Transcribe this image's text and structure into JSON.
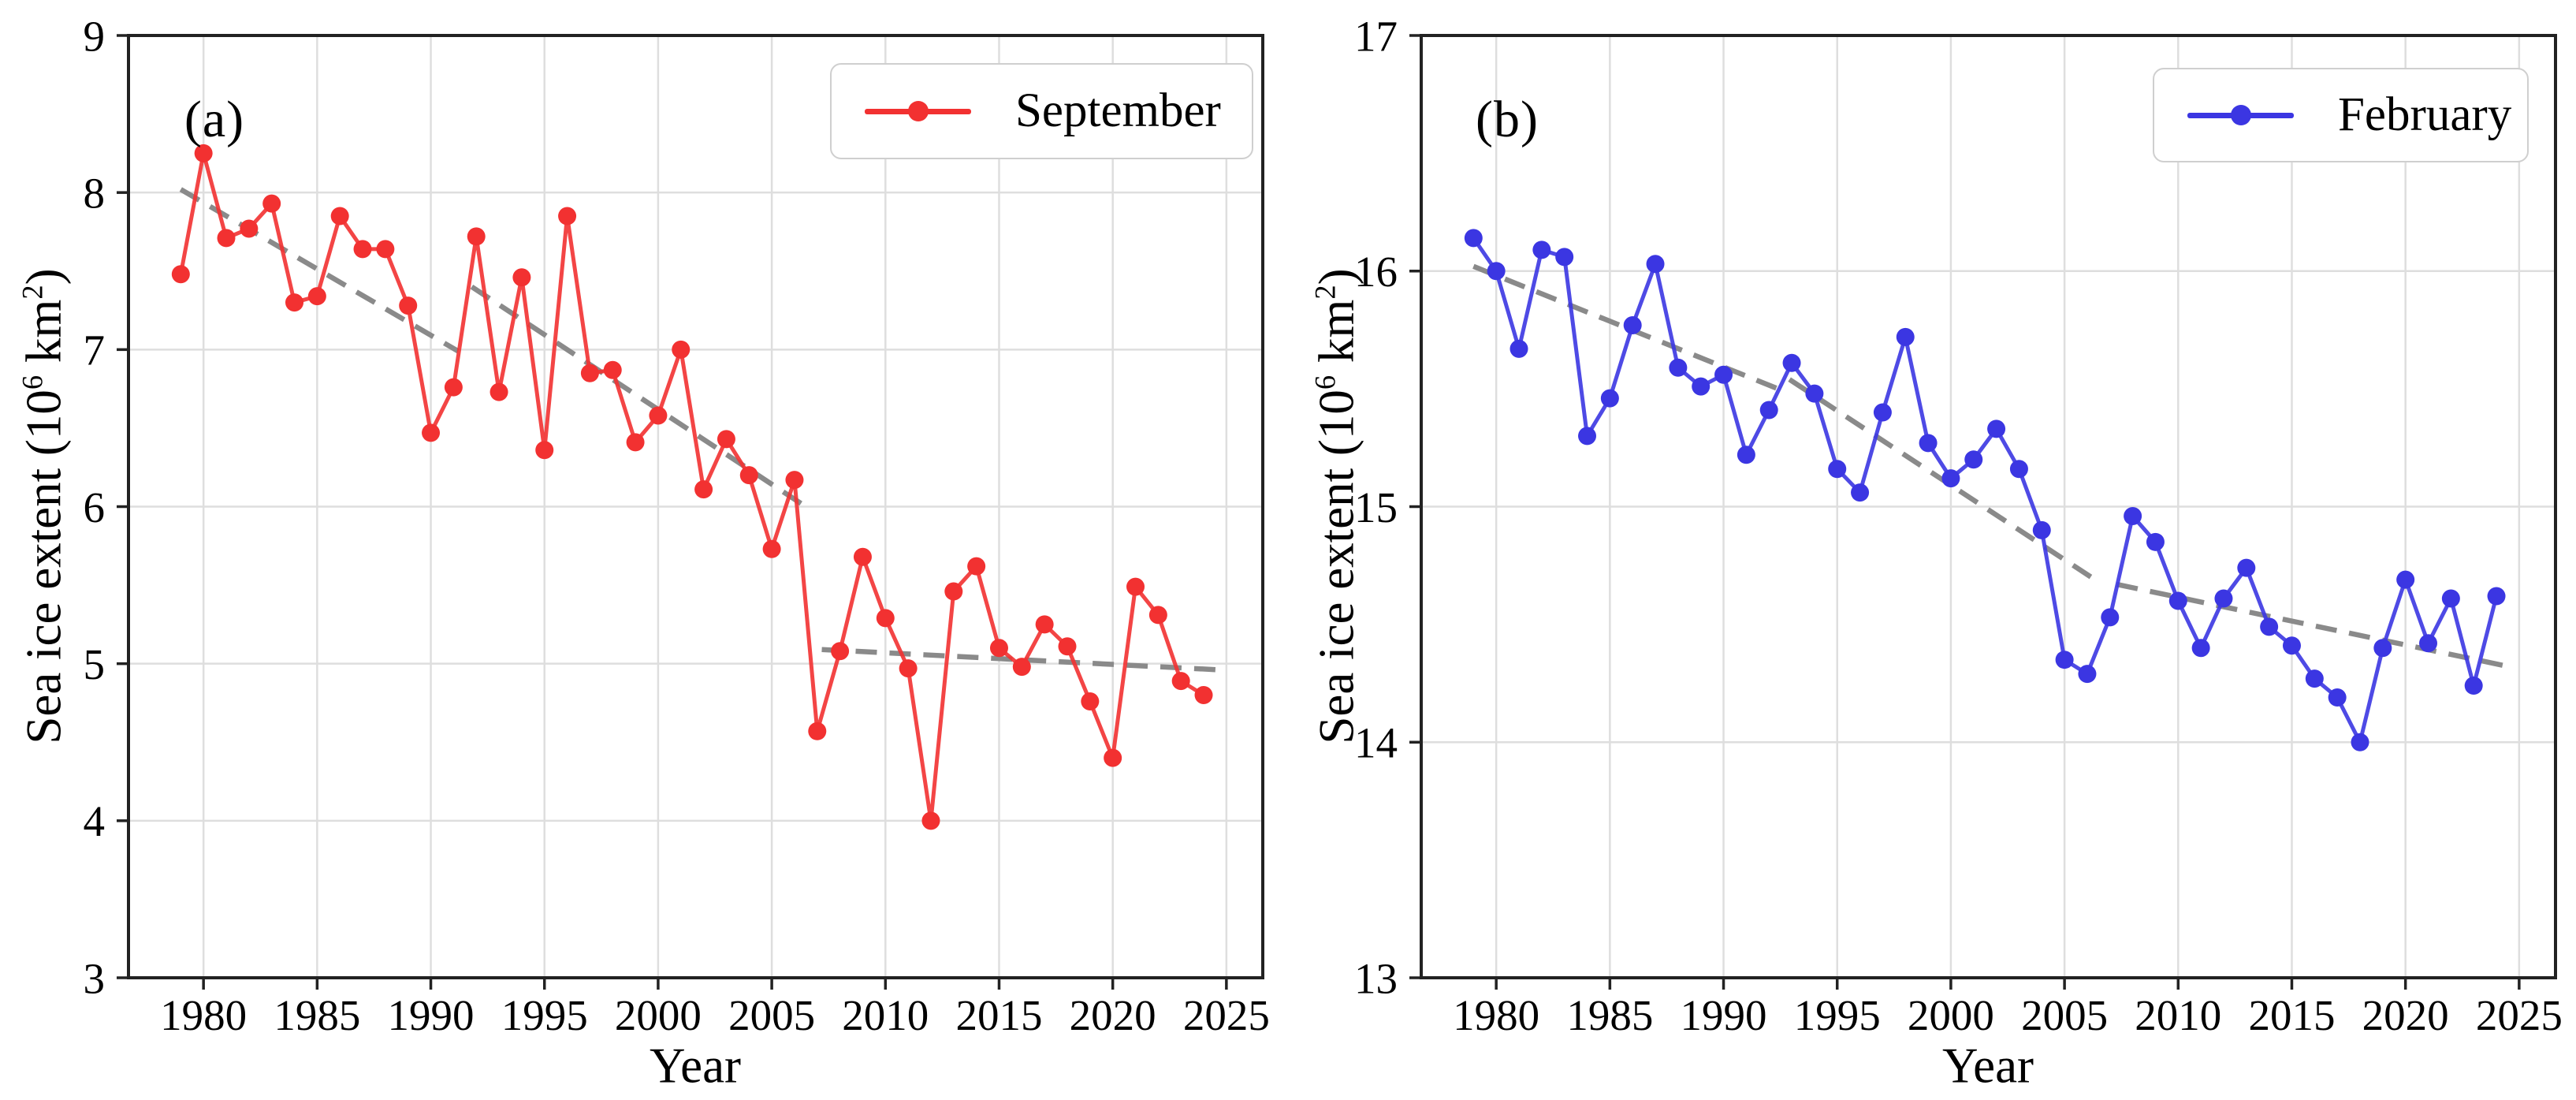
{
  "figure": {
    "background": "#ffffff",
    "description": "Two-panel line chart of Arctic sea ice extent with dashed piecewise trend lines"
  },
  "chart_data": [
    {
      "type": "line",
      "panel_label": "(a)",
      "legend_label": "September",
      "legend_position": "upper right",
      "series_color": "#f23131",
      "marker": "circle",
      "trend_color": "#8a8a8a",
      "trend_style": "dashed",
      "grid": true,
      "xlabel": "Year",
      "ylabel": "Sea ice extent (10⁶ km²)",
      "ylabel_parts": {
        "pre": "Sea ice extent (10",
        "exp": "6",
        "mid": " km",
        "exp2": "2",
        "post": ")"
      },
      "xlim": [
        1976.7,
        2026.6
      ],
      "ylim": [
        3,
        9
      ],
      "xticks": [
        1980,
        1985,
        1990,
        1995,
        2000,
        2005,
        2010,
        2015,
        2020,
        2025
      ],
      "yticks": [
        3,
        4,
        5,
        6,
        7,
        8,
        9
      ],
      "years": [
        1979,
        1980,
        1981,
        1982,
        1983,
        1984,
        1985,
        1986,
        1987,
        1988,
        1989,
        1990,
        1991,
        1992,
        1993,
        1994,
        1995,
        1996,
        1997,
        1998,
        1999,
        2000,
        2001,
        2002,
        2003,
        2004,
        2005,
        2006,
        2007,
        2008,
        2009,
        2010,
        2011,
        2012,
        2013,
        2014,
        2015,
        2016,
        2017,
        2018,
        2019,
        2020,
        2021,
        2022,
        2023,
        2024
      ],
      "values": [
        7.48,
        8.25,
        7.71,
        7.77,
        7.93,
        7.3,
        7.34,
        7.85,
        7.64,
        7.64,
        7.28,
        6.47,
        6.76,
        7.72,
        6.73,
        7.46,
        6.36,
        7.85,
        6.85,
        6.87,
        6.41,
        6.58,
        7.0,
        6.11,
        6.43,
        6.2,
        5.73,
        6.17,
        4.57,
        5.08,
        5.68,
        5.29,
        4.97,
        4.0,
        5.46,
        5.62,
        5.1,
        4.98,
        5.25,
        5.11,
        4.76,
        4.4,
        5.49,
        5.31,
        4.89,
        4.8
      ],
      "trend_segments": [
        [
          1979.0,
          8.02,
          1991.2,
          6.99
        ],
        [
          1991.8,
          7.4,
          2006.6,
          5.99
        ],
        [
          2007.2,
          5.09,
          2024.8,
          4.96
        ]
      ]
    },
    {
      "type": "line",
      "panel_label": "(b)",
      "legend_label": "February",
      "legend_position": "upper right",
      "series_color": "#3b36e2",
      "marker": "circle",
      "trend_color": "#8a8a8a",
      "trend_style": "dashed",
      "grid": true,
      "xlabel": "Year",
      "ylabel": "Sea ice extent (10⁶ km²)",
      "ylabel_parts": {
        "pre": "Sea ice extent (10",
        "exp": "6",
        "mid": " km",
        "exp2": "2",
        "post": ")"
      },
      "xlim": [
        1976.7,
        2026.6
      ],
      "ylim": [
        13,
        17
      ],
      "xticks": [
        1980,
        1985,
        1990,
        1995,
        2000,
        2005,
        2010,
        2015,
        2020,
        2025
      ],
      "yticks": [
        13,
        14,
        15,
        16,
        17
      ],
      "years": [
        1979,
        1980,
        1981,
        1982,
        1983,
        1984,
        1985,
        1986,
        1987,
        1988,
        1989,
        1990,
        1991,
        1992,
        1993,
        1994,
        1995,
        1996,
        1997,
        1998,
        1999,
        2000,
        2001,
        2002,
        2003,
        2004,
        2005,
        2006,
        2007,
        2008,
        2009,
        2010,
        2011,
        2012,
        2013,
        2014,
        2015,
        2016,
        2017,
        2018,
        2019,
        2020,
        2021,
        2022,
        2023,
        2024
      ],
      "values": [
        16.14,
        16.0,
        15.67,
        16.09,
        16.06,
        15.3,
        15.46,
        15.77,
        16.03,
        15.59,
        15.51,
        15.56,
        15.22,
        15.41,
        15.61,
        15.48,
        15.16,
        15.06,
        15.4,
        15.72,
        15.27,
        15.12,
        15.2,
        15.33,
        15.16,
        14.9,
        14.35,
        14.29,
        14.53,
        14.96,
        14.85,
        14.6,
        14.4,
        14.61,
        14.74,
        14.49,
        14.41,
        14.27,
        14.19,
        14.0,
        14.4,
        14.69,
        14.42,
        14.61,
        14.24,
        14.62
      ],
      "trend_segments": [
        [
          1979.0,
          16.02,
          1992.4,
          15.5
        ],
        [
          1992.9,
          15.54,
          2006.5,
          14.68
        ],
        [
          2007.3,
          14.67,
          2024.6,
          14.32
        ]
      ]
    }
  ]
}
